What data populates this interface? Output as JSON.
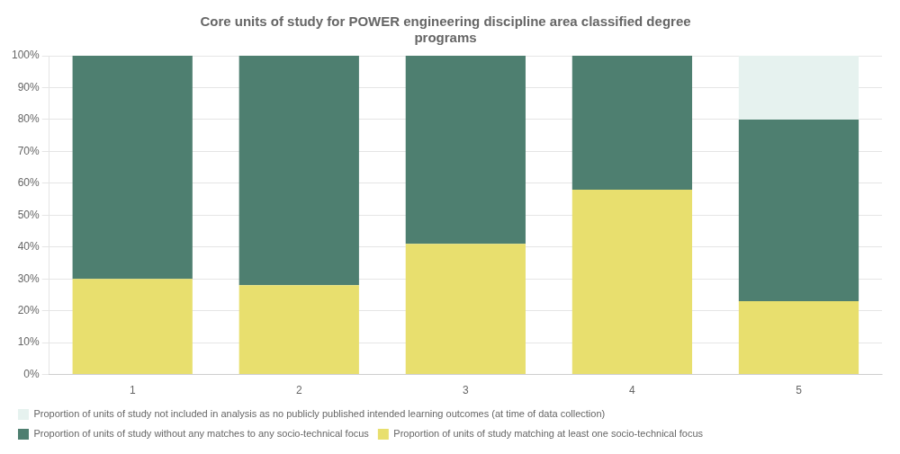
{
  "chart_data": {
    "type": "bar",
    "title": "Core units of study for POWER engineering discipline area classified degree\nprograms",
    "categories": [
      "1",
      "2",
      "3",
      "4",
      "5"
    ],
    "series": [
      {
        "name": "Proportion of units of study matching at least one socio-technical focus",
        "color": "#e8df6e",
        "values": [
          0.3,
          0.28,
          0.41,
          0.58,
          0.23
        ]
      },
      {
        "name": "Proportion of units of study without any matches to any socio-technical focus",
        "color": "#4e7f70",
        "values": [
          0.7,
          0.72,
          0.59,
          0.42,
          0.57
        ]
      },
      {
        "name": "Proportion of units of study not included in analysis as no publicly published intended learning outcomes (at time of data collection)",
        "color": "#e6f2ef",
        "values": [
          0.0,
          0.0,
          0.0,
          0.0,
          0.2
        ]
      }
    ],
    "stacked": true,
    "ylim": [
      0.0,
      1.0
    ],
    "yticks": [
      {
        "value": 0.0,
        "label": "0%"
      },
      {
        "value": 0.1,
        "label": "10%"
      },
      {
        "value": 0.2,
        "label": "20%"
      },
      {
        "value": 0.3,
        "label": "30%"
      },
      {
        "value": 0.4,
        "label": "40%"
      },
      {
        "value": 0.5,
        "label": "50%"
      },
      {
        "value": 0.6,
        "label": "60%"
      },
      {
        "value": 0.7,
        "label": "70%"
      },
      {
        "value": 0.8,
        "label": "80%"
      },
      {
        "value": 0.9,
        "label": "90%"
      },
      {
        "value": 1.0,
        "label": "100%"
      }
    ],
    "grid": true,
    "legend": "bottom"
  }
}
